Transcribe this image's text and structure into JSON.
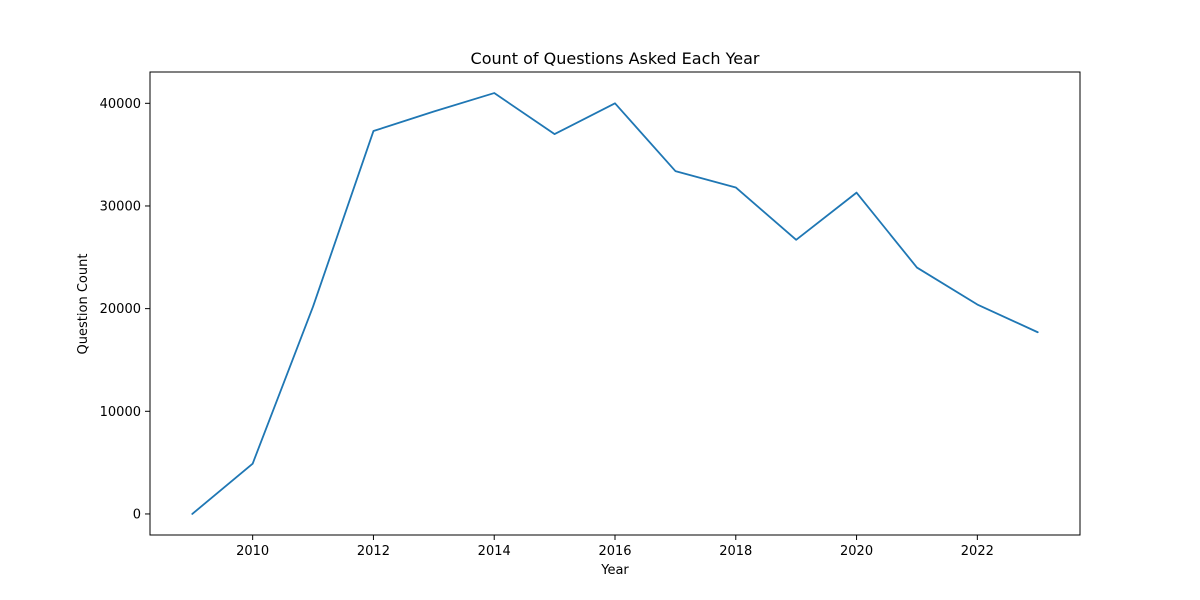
{
  "chart_data": {
    "type": "line",
    "title": "Count of Questions Asked Each Year",
    "xlabel": "Year",
    "ylabel": "Question Count",
    "x": [
      2009,
      2010,
      2011,
      2012,
      2013,
      2014,
      2015,
      2016,
      2017,
      2018,
      2019,
      2020,
      2021,
      2022,
      2023
    ],
    "series": [
      {
        "values": [
          0,
          4900,
          20200,
          37300,
          39200,
          41000,
          37000,
          40000,
          33400,
          31800,
          26700,
          31300,
          24000,
          20400,
          17700
        ],
        "color": "#1f77b4"
      }
    ],
    "xlim": [
      2008.3,
      2023.7
    ],
    "ylim": [
      -2050,
      43050
    ],
    "xticks": [
      2010,
      2012,
      2014,
      2016,
      2018,
      2020,
      2022
    ],
    "yticks": [
      0,
      10000,
      20000,
      30000,
      40000
    ],
    "grid": false,
    "legend": "none"
  }
}
